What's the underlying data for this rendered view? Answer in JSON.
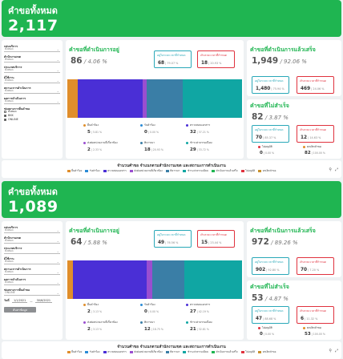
{
  "panels": [
    {
      "banner": {
        "title": "คำขอทั้งหมด",
        "value": "2,117"
      },
      "filters": {
        "fields": [
          {
            "label": "กลุ่มบริการ",
            "value": "ทั้งหมด"
          },
          {
            "label": "สำนักงานเขต",
            "value": "ทั้งหมด"
          },
          {
            "label": "ประเภทบริการ",
            "value": "ทั้งหมด"
          },
          {
            "label": "ผู้ใช้งาน",
            "value": "ทั้งหมด"
          },
          {
            "label": "สถานะการดำเนินการ",
            "value": "ทั้งหมด"
          },
          {
            "label": "ผลการดำเนินการ",
            "value": "ทั้งหมด"
          }
        ],
        "source_label": "ช่องทางการยื่นคำขอ",
        "checkboxes": [
          {
            "label": "ทั้งหมด",
            "checked": false
          },
          {
            "label": "BKK",
            "checked": true
          },
          {
            "label": "ONLINE",
            "checked": true
          }
        ],
        "date": null,
        "search_label": null
      },
      "processing": {
        "title": "คำขอที่ดำเนินการอยู่",
        "value": "86",
        "percent": "4.06 %",
        "box_within": {
          "label": "อยู่ในระยะเวลาที่กำหนด",
          "value": "68",
          "percent": "79.07 %"
        },
        "box_over": {
          "label": "เกินระยะเวลาที่กำหนด",
          "value": "18",
          "percent": "20.93 %"
        },
        "segments": [
          {
            "color": "#e08e2b",
            "value": 5
          },
          {
            "color": "#4a2fd6",
            "value": 32
          },
          {
            "color": "#9a4ed0",
            "value": 2
          },
          {
            "color": "#3a7ea6",
            "value": 18
          },
          {
            "color": "#10a6a3",
            "value": 29
          }
        ],
        "legend": [
          {
            "color": "#e08e2b",
            "label": "ยื่นคำร้อง",
            "value": "5",
            "percent": "5.81 %"
          },
          {
            "color": "#2a8bd6",
            "label": "รับคำร้อง",
            "value": "0",
            "percent": "0.00 %"
          },
          {
            "color": "#4a2fd6",
            "label": "ตรวจสอบเอกสาร",
            "value": "32",
            "percent": "37.21 %"
          },
          {
            "color": "#9a4ed0",
            "label": "ส่งต่อหน่วยงานที่เกี่ยวข้อง",
            "value": "2",
            "percent": "2.33 %"
          },
          {
            "color": "#3a7ea6",
            "label": "พิจารณา",
            "value": "18",
            "percent": "20.93 %"
          },
          {
            "color": "#10a6a3",
            "label": "ชำระค่าธรรมเนียม",
            "value": "29",
            "percent": "33.72 %"
          }
        ]
      },
      "completed": {
        "title": "คำขอที่ดำเนินการแล้วเสร็จ",
        "value": "1,949",
        "percent": "92.06 %",
        "box_within": {
          "label": "อยู่ในระยะเวลาที่กำหนด",
          "value": "1,480",
          "percent": "75.94 %"
        },
        "box_over": {
          "label": "เกินระยะเวลาที่กำหนด",
          "value": "469",
          "percent": "24.06 %"
        }
      },
      "failed": {
        "title": "คำขอที่ไม่สำเร็จ",
        "value": "82",
        "percent": "3.87 %",
        "box_within": {
          "label": "อยู่ในระยะเวลาที่กำหนด",
          "value": "70",
          "percent": "85.37 %"
        },
        "box_over": {
          "label": "เกินระยะเวลาที่กำหนด",
          "value": "12",
          "percent": "14.63 %"
        },
        "reject": {
          "color": "#e0323e",
          "label": "ไม่อนุมัติ",
          "value": "0",
          "percent": "0.00 %"
        },
        "cancel": {
          "color": "#e08e2b",
          "label": "ยกเลิกคำขอ",
          "value": "82",
          "percent": "100.00 %"
        }
      },
      "bottom": {
        "title": "จำนวนคำขอ จำแนกตามสำนักงานเขต และสถานะการดำเนินงาน"
      }
    },
    {
      "banner": {
        "title": "คำขอทั้งหมด",
        "value": "1,089"
      },
      "filters": {
        "fields": [
          {
            "label": "กลุ่มบริการ",
            "value": "ทั้งหมด"
          },
          {
            "label": "สำนักงานเขต",
            "value": "ทั้งหมด"
          },
          {
            "label": "ประเภทบริการ",
            "value": "ทั้งหมด"
          },
          {
            "label": "ผู้ใช้งาน",
            "value": "ทั้งหมด"
          },
          {
            "label": "สถานะการดำเนินการ",
            "value": "ทั้งหมด"
          },
          {
            "label": "ผลการดำเนินการ",
            "value": "ทั้งหมด"
          }
        ],
        "source_label": "ช่องทางการยื่นคำขอ",
        "source_value": "ONLINE",
        "checkboxes": [],
        "date": {
          "label": "วันที่",
          "from": "1/1/2021",
          "to": "30/6/2021"
        },
        "search_label": "ค้นหาข้อมูล"
      },
      "processing": {
        "title": "คำขอที่ดำเนินการอยู่",
        "value": "64",
        "percent": "5.88 %",
        "box_within": {
          "label": "อยู่ในระยะเวลาที่กำหนด",
          "value": "49",
          "percent": "76.56 %"
        },
        "box_over": {
          "label": "เกินระยะเวลาที่กำหนด",
          "value": "15",
          "percent": "23.44 %"
        },
        "segments": [
          {
            "color": "#e08e2b",
            "value": 2
          },
          {
            "color": "#4a2fd6",
            "value": 27
          },
          {
            "color": "#9a4ed0",
            "value": 2
          },
          {
            "color": "#3a7ea6",
            "value": 12
          },
          {
            "color": "#10a6a3",
            "value": 21
          }
        ],
        "legend": [
          {
            "color": "#e08e2b",
            "label": "ยื่นคำร้อง",
            "value": "2",
            "percent": "3.13 %"
          },
          {
            "color": "#2a8bd6",
            "label": "รับคำร้อง",
            "value": "0",
            "percent": "0.00 %"
          },
          {
            "color": "#4a2fd6",
            "label": "ตรวจสอบเอกสาร",
            "value": "27",
            "percent": "42.19 %"
          },
          {
            "color": "#9a4ed0",
            "label": "ส่งต่อหน่วยงานที่เกี่ยวข้อง",
            "value": "2",
            "percent": "3.13 %"
          },
          {
            "color": "#3a7ea6",
            "label": "พิจารณา",
            "value": "12",
            "percent": "18.75 %"
          },
          {
            "color": "#10a6a3",
            "label": "ชำระค่าธรรมเนียม",
            "value": "21",
            "percent": "32.81 %"
          }
        ]
      },
      "completed": {
        "title": "คำขอที่ดำเนินการแล้วเสร็จ",
        "value": "972",
        "percent": "89.26 %",
        "box_within": {
          "label": "อยู่ในระยะเวลาที่กำหนด",
          "value": "902",
          "percent": "92.80 %"
        },
        "box_over": {
          "label": "เกินระยะเวลาที่กำหนด",
          "value": "70",
          "percent": "7.20 %"
        }
      },
      "failed": {
        "title": "คำขอที่ไม่สำเร็จ",
        "value": "53",
        "percent": "4.87 %",
        "box_within": {
          "label": "อยู่ในระยะเวลาที่กำหนด",
          "value": "47",
          "percent": "88.68 %"
        },
        "box_over": {
          "label": "เกินระยะเวลาที่กำหนด",
          "value": "6",
          "percent": "11.32 %"
        },
        "reject": {
          "color": "#e0323e",
          "label": "ไม่อนุมัติ",
          "value": "0",
          "percent": "0.00 %"
        },
        "cancel": {
          "color": "#e08e2b",
          "label": "ยกเลิกคำขอ",
          "value": "53",
          "percent": "100.00 %"
        }
      },
      "bottom": {
        "title": "จำนวนคำขอ จำแนกตามสำนักงานเขต และสถานะการดำเนินงาน"
      }
    }
  ],
  "bottom_legend": [
    {
      "color": "#e08e2b",
      "label": "ยื่นคำร้อง"
    },
    {
      "color": "#2a8bd6",
      "label": "รับคำร้อง"
    },
    {
      "color": "#4a2fd6",
      "label": "ตรวจสอบเอกสาร"
    },
    {
      "color": "#9a4ed0",
      "label": "ส่งต่อหน่วยงานที่เกี่ยวข้อง"
    },
    {
      "color": "#3a7ea6",
      "label": "พิจารณา"
    },
    {
      "color": "#10a6a3",
      "label": "ชำระค่าธรรมเนียม"
    },
    {
      "color": "#1fb551",
      "label": "ดำเนินการแล้วเสร็จ"
    },
    {
      "color": "#e0323e",
      "label": "ไม่อนุมัติ"
    },
    {
      "color": "#c9902b",
      "label": "ยกเลิกคำขอ"
    }
  ],
  "icons": {
    "filter": "filter-icon",
    "expand": "expand-icon",
    "chevron": "chevron-down-icon"
  }
}
